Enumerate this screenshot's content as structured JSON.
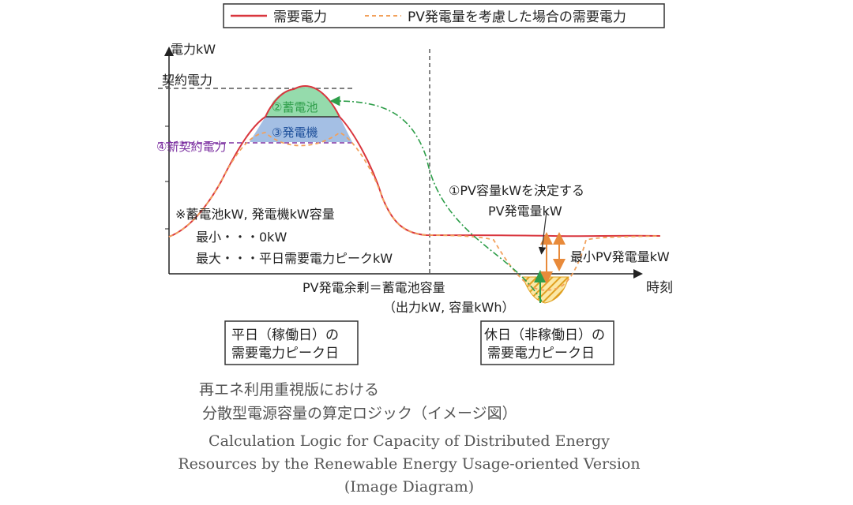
{
  "legend": {
    "demand": "需要電力",
    "pv_adjusted": "PV発電量を考慮した場合の需要電力"
  },
  "axes": {
    "y_label": "電力kW",
    "x_label": "時刻"
  },
  "labels": {
    "contract_power": "契約電力",
    "battery": "②蓄電池",
    "generator": "③発電機",
    "new_contract": "④新契約電力",
    "capacity_title": "※蓄電池kW, 発電機kW容量",
    "capacity_min": "最小・・・0kW",
    "capacity_max": "最大・・・平日需要電力ピークkW",
    "pv_decide": "①PV容量kWを決定する",
    "pv_generation": "PV発電量kW",
    "min_pv": "最小PV発電量kW",
    "pv_surplus": "PV発電余剰＝蓄電池容量",
    "pv_surplus_sub": "（出力kW, 容量kWh）"
  },
  "boxes": {
    "weekday_line1": "平日（稼働日）の",
    "weekday_line2": "需要電力ピーク日",
    "holiday_line1": "休日（非稼働日）の",
    "holiday_line2": "需要電力ピーク日"
  },
  "caption": {
    "jp_line1": "再エネ利用重視版における",
    "jp_line2": "分散型電源容量の算定ロジック（イメージ図）",
    "en_line1": "Calculation Logic for Capacity of Distributed Energy",
    "en_line2": "Resources by the Renewable Energy Usage-oriented Version",
    "en_line3": "(Image Diagram)"
  },
  "colors": {
    "demand": "#d9363e",
    "pv_adjusted": "#f2a15c",
    "battery_fill": "#8fd9a8",
    "generator_fill": "#9fbce3",
    "purple": "#7b2fa0",
    "green_arrow": "#2e9e4a",
    "surplus_hatch": "#e0a020"
  }
}
